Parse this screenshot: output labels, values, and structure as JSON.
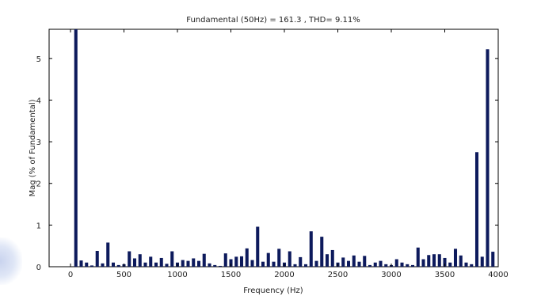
{
  "chart_data": {
    "type": "bar",
    "title": "Fundamental (50Hz) = 161.3 , THD= 9.11%",
    "xlabel": "Frequency (Hz)",
    "ylabel": "Mag (% of Fundamental)",
    "xlim": [
      -200,
      4000
    ],
    "ylim": [
      0,
      5.7
    ],
    "x_ticks": [
      0,
      500,
      1000,
      1500,
      2000,
      2500,
      3000,
      3500,
      4000
    ],
    "y_ticks": [
      0,
      1,
      2,
      3,
      4,
      5
    ],
    "bar_color": "#0d1a5c",
    "bar_width_hz": 30,
    "x": [
      50,
      100,
      150,
      200,
      250,
      300,
      350,
      400,
      450,
      500,
      550,
      600,
      650,
      700,
      750,
      800,
      850,
      900,
      950,
      1000,
      1050,
      1100,
      1150,
      1200,
      1250,
      1300,
      1350,
      1400,
      1450,
      1500,
      1550,
      1600,
      1650,
      1700,
      1750,
      1800,
      1850,
      1900,
      1950,
      2000,
      2050,
      2100,
      2150,
      2200,
      2250,
      2300,
      2350,
      2400,
      2450,
      2500,
      2550,
      2600,
      2650,
      2700,
      2750,
      2800,
      2850,
      2900,
      2950,
      3000,
      3050,
      3100,
      3150,
      3200,
      3250,
      3300,
      3350,
      3400,
      3450,
      3500,
      3550,
      3600,
      3650,
      3700,
      3750,
      3800,
      3850,
      3900,
      3950
    ],
    "values": [
      5.7,
      0.15,
      0.1,
      0.03,
      0.38,
      0.08,
      0.58,
      0.1,
      0.04,
      0.06,
      0.37,
      0.2,
      0.3,
      0.1,
      0.24,
      0.1,
      0.21,
      0.07,
      0.37,
      0.1,
      0.16,
      0.14,
      0.2,
      0.14,
      0.31,
      0.08,
      0.04,
      0.02,
      0.32,
      0.18,
      0.24,
      0.25,
      0.44,
      0.16,
      0.96,
      0.12,
      0.33,
      0.12,
      0.43,
      0.1,
      0.37,
      0.06,
      0.23,
      0.06,
      0.85,
      0.14,
      0.72,
      0.3,
      0.4,
      0.1,
      0.22,
      0.14,
      0.27,
      0.12,
      0.26,
      0.04,
      0.1,
      0.14,
      0.06,
      0.04,
      0.18,
      0.1,
      0.06,
      0.04,
      0.46,
      0.18,
      0.28,
      0.3,
      0.3,
      0.21,
      0.1,
      0.43,
      0.27,
      0.1,
      0.06,
      2.75,
      0.24,
      5.22,
      0.36
    ]
  }
}
